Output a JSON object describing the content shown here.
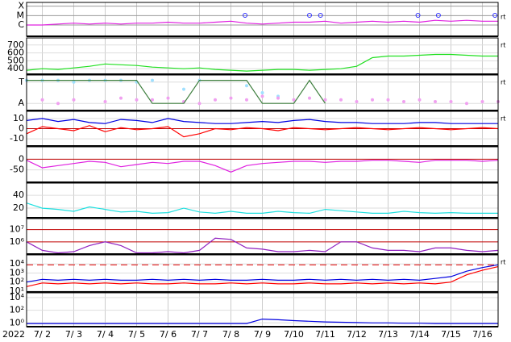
{
  "x_axis": {
    "year": "2022",
    "xlim": [
      1.5,
      16.5
    ],
    "x": [
      1.5,
      2,
      2.5,
      3,
      3.5,
      4,
      4.5,
      5,
      5.5,
      6,
      6.5,
      7,
      7.5,
      8,
      8.5,
      9,
      9.5,
      10,
      10.5,
      11,
      11.5,
      12,
      12.5,
      13,
      13.5,
      14,
      14.5,
      15,
      15.5,
      16,
      16.5
    ],
    "xticks": [
      {
        "value": 2,
        "label": "7/ 2"
      },
      {
        "value": 3,
        "label": "7/ 3"
      },
      {
        "value": 4,
        "label": "7/ 4"
      },
      {
        "value": 5,
        "label": "7/ 5"
      },
      {
        "value": 6,
        "label": "7/ 6"
      },
      {
        "value": 7,
        "label": "7/ 7"
      },
      {
        "value": 8,
        "label": "7/ 8"
      },
      {
        "value": 9,
        "label": "7/ 9"
      },
      {
        "value": 10,
        "label": "7/10"
      },
      {
        "value": 11,
        "label": "7/11"
      },
      {
        "value": 12,
        "label": "7/12"
      },
      {
        "value": 13,
        "label": "7/13"
      },
      {
        "value": 14,
        "label": "7/14"
      },
      {
        "value": 15,
        "label": "7/15"
      },
      {
        "value": 16,
        "label": "7/16"
      }
    ]
  },
  "chart_data": [
    {
      "type": "line",
      "ylim": [
        -7.2,
        -3.6
      ],
      "yticks": [
        {
          "value": -4,
          "label": "X"
        },
        {
          "value": -5,
          "label": "M"
        },
        {
          "value": -6,
          "label": "C"
        }
      ],
      "grid_color": "#999999",
      "right_label": "rt",
      "markers": {
        "x": [
          8.45,
          10.5,
          10.85,
          13.95,
          14.6,
          16.4
        ],
        "color": "#3030ff"
      },
      "series": [
        {
          "color": "#e020e0",
          "mode": "line",
          "values": [
            -6.0,
            -6.0,
            -5.9,
            -5.8,
            -5.9,
            -5.8,
            -5.9,
            -5.8,
            -5.8,
            -5.7,
            -5.8,
            -5.8,
            -5.7,
            -5.6,
            -5.8,
            -5.9,
            -5.8,
            -5.7,
            -5.7,
            -5.6,
            -5.8,
            -5.7,
            -5.6,
            -5.7,
            -5.6,
            -5.7,
            -5.5,
            -5.6,
            -5.5,
            -5.6,
            -5.6
          ]
        }
      ]
    },
    {
      "type": "line",
      "ylim": [
        330,
        790
      ],
      "yticks": [
        400,
        500,
        600,
        700
      ],
      "right_label": "rt",
      "series": [
        {
          "color": "#20e020",
          "mode": "line",
          "values": [
            380,
            400,
            390,
            410,
            430,
            460,
            450,
            440,
            420,
            410,
            400,
            410,
            390,
            380,
            370,
            380,
            390,
            390,
            380,
            390,
            400,
            430,
            540,
            560,
            560,
            570,
            580,
            580,
            570,
            560,
            560
          ]
        }
      ]
    },
    {
      "type": "line",
      "ylim": [
        0,
        1
      ],
      "yticks": [
        {
          "value": 0.8,
          "label": "T"
        },
        {
          "value": 0.2,
          "label": "A"
        }
      ],
      "right_label": "rt",
      "series": [
        {
          "color": "#a0e0ff",
          "mode": "points",
          "values": [
            0.85,
            0.85,
            0.85,
            0.8,
            0.85,
            0.85,
            0.85,
            0.8,
            0.85,
            null,
            0.6,
            0.85,
            null,
            null,
            0.7,
            0.5,
            0.4,
            null,
            null,
            null,
            null,
            null,
            null,
            null,
            null,
            null,
            null,
            null,
            null,
            null,
            null
          ]
        },
        {
          "color": "#f0a0f0",
          "mode": "points",
          "values": [
            null,
            0.3,
            0.2,
            0.3,
            null,
            0.25,
            0.35,
            0.3,
            0.3,
            0.35,
            0.25,
            0.2,
            0.3,
            0.35,
            0.3,
            0.4,
            0.35,
            0.3,
            0.35,
            0.3,
            0.3,
            0.25,
            0.3,
            0.3,
            0.25,
            0.3,
            0.25,
            0.25,
            0.2,
            0.25,
            0.25
          ]
        },
        {
          "color": "#408040",
          "mode": "line",
          "values": [
            0.85,
            0.85,
            0.85,
            0.85,
            0.85,
            0.85,
            0.85,
            0.85,
            0.2,
            0.2,
            0.2,
            0.85,
            0.85,
            0.85,
            0.85,
            0.2,
            0.2,
            0.2,
            0.85,
            0.2,
            null,
            null,
            null,
            null,
            null,
            null,
            null,
            null,
            null,
            null,
            null
          ]
        }
      ]
    },
    {
      "type": "line",
      "ylim": [
        -17,
        17
      ],
      "yticks": [
        10,
        0,
        -10
      ],
      "right_label": "rt",
      "ref_lines": [
        {
          "value": 0,
          "color": "#c00000"
        }
      ],
      "series": [
        {
          "color": "#0000e0",
          "mode": "line",
          "values": [
            8,
            10,
            7,
            9,
            6,
            5,
            9,
            8,
            6,
            10,
            7,
            6,
            5,
            5,
            6,
            7,
            6,
            8,
            9,
            7,
            6,
            6,
            5,
            5,
            5,
            6,
            6,
            5,
            5,
            5,
            5
          ]
        },
        {
          "color": "#ff0000",
          "mode": "line",
          "values": [
            -5,
            2,
            0,
            -2,
            3,
            -3,
            1,
            -1,
            0,
            2,
            -8,
            -5,
            0,
            -1,
            1,
            0,
            -2,
            1,
            0,
            -1,
            0,
            1,
            0,
            -1,
            0,
            1,
            0,
            -1,
            0,
            1,
            0
          ]
        }
      ]
    },
    {
      "type": "line",
      "ylim": [
        -108,
        58
      ],
      "yticks": [
        0,
        -50
      ],
      "ref_lines": [
        {
          "value": 0,
          "color": "#c00000"
        }
      ],
      "series": [
        {
          "color": "#e020e0",
          "mode": "line",
          "values": [
            -5,
            -40,
            -30,
            -20,
            -10,
            -15,
            -35,
            -25,
            -15,
            -20,
            -10,
            -10,
            -30,
            -60,
            -30,
            -20,
            -15,
            -10,
            -10,
            -15,
            -10,
            -10,
            -5,
            -5,
            -10,
            -15,
            -5,
            -5,
            -5,
            -10,
            -5
          ]
        }
      ]
    },
    {
      "type": "line",
      "ylim": [
        5,
        59
      ],
      "yticks": [
        20,
        40
      ],
      "series": [
        {
          "color": "#20e0e0",
          "mode": "line",
          "values": [
            28,
            20,
            18,
            15,
            22,
            18,
            14,
            15,
            12,
            13,
            20,
            14,
            12,
            15,
            12,
            12,
            15,
            13,
            12,
            18,
            16,
            14,
            12,
            12,
            15,
            13,
            12,
            13,
            12,
            12,
            12
          ]
        }
      ]
    },
    {
      "type": "line",
      "ylim": [
        5,
        7.9
      ],
      "yticks": [
        {
          "value": 6,
          "label": "10⁶"
        },
        {
          "value": 7,
          "label": "10⁷"
        }
      ],
      "grid_color": "#c00000",
      "series": [
        {
          "color": "#9020c0",
          "mode": "line",
          "values": [
            6.0,
            5.3,
            5.1,
            5.2,
            5.7,
            6.0,
            5.7,
            5.1,
            5.1,
            5.2,
            5.1,
            5.3,
            6.3,
            6.2,
            5.5,
            5.4,
            5.2,
            5.2,
            5.3,
            5.2,
            6.0,
            6.0,
            5.5,
            5.3,
            5.3,
            5.2,
            5.5,
            5.5,
            5.3,
            5.2,
            5.3
          ]
        }
      ]
    },
    {
      "type": "line",
      "ylim": [
        0.9,
        5
      ],
      "yticks": [
        {
          "value": 1,
          "label": "10¹"
        },
        {
          "value": 2,
          "label": "10²"
        },
        {
          "value": 3,
          "label": "10³"
        },
        {
          "value": 4,
          "label": "10⁴"
        }
      ],
      "right_label": "rt",
      "ref_lines": [
        {
          "value": 3.9,
          "color": "#e00000",
          "dash": true
        }
      ],
      "series": [
        {
          "color": "#0000e0",
          "mode": "line",
          "values": [
            2.0,
            2.3,
            2.2,
            2.3,
            2.2,
            2.3,
            2.2,
            2.2,
            2.3,
            2.2,
            2.3,
            2.2,
            2.3,
            2.2,
            2.2,
            2.3,
            2.2,
            2.2,
            2.3,
            2.2,
            2.3,
            2.2,
            2.3,
            2.2,
            2.3,
            2.2,
            2.4,
            2.6,
            3.2,
            3.6,
            3.9
          ]
        },
        {
          "color": "#ff0000",
          "mode": "line",
          "values": [
            1.5,
            1.9,
            1.8,
            1.9,
            1.8,
            1.9,
            1.8,
            1.9,
            1.8,
            1.8,
            1.9,
            1.8,
            1.8,
            1.9,
            1.8,
            1.9,
            1.8,
            1.8,
            1.9,
            1.8,
            1.8,
            1.9,
            1.8,
            1.9,
            1.8,
            1.9,
            1.8,
            2.0,
            2.8,
            3.3,
            3.7
          ]
        }
      ]
    },
    {
      "type": "line",
      "ylim": [
        -0.6,
        4.75
      ],
      "yticks": [
        {
          "value": 0,
          "label": "10⁰"
        },
        {
          "value": 2,
          "label": "10²"
        },
        {
          "value": 4,
          "label": "10⁴"
        }
      ],
      "series": [
        {
          "color": "#0000e0",
          "mode": "line",
          "values": [
            -0.1,
            -0.1,
            -0.1,
            -0.1,
            -0.1,
            -0.1,
            -0.1,
            -0.1,
            -0.1,
            -0.1,
            -0.1,
            -0.1,
            -0.1,
            -0.1,
            -0.1,
            0.6,
            0.5,
            0.35,
            0.25,
            0.15,
            0.1,
            0.05,
            0,
            0,
            -0.05,
            -0.05,
            -0.1,
            -0.1,
            -0.1,
            -0.1,
            -0.1
          ]
        }
      ]
    }
  ]
}
